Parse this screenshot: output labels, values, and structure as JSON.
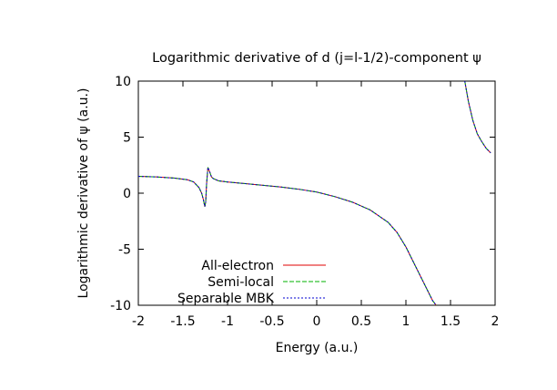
{
  "chart_data": {
    "type": "line",
    "title": "Logarithmic derivative of d (j=l-1/2)-component ψ",
    "xlabel": "Energy (a.u.)",
    "ylabel": "Logarithmic derivative of ψ (a.u.)",
    "xlim": [
      -2,
      2
    ],
    "ylim": [
      -10,
      10
    ],
    "xticks": [
      "-2",
      "-1.5",
      "-1",
      "-0.5",
      "0",
      "0.5",
      "1",
      "1.5",
      "2"
    ],
    "yticks": [
      "10",
      "5",
      "0",
      "-5",
      "-10"
    ],
    "grid": false,
    "legend_position": "bottom-left",
    "series": [
      {
        "name": "All-electron",
        "color": "#e00000",
        "style": "solid",
        "x": [
          -2.0,
          -1.8,
          -1.6,
          -1.45,
          -1.38,
          -1.32,
          -1.29,
          -1.27,
          -1.255,
          -1.245,
          -1.235,
          -1.22,
          -1.2,
          -1.18,
          -1.16,
          -1.13,
          -1.1,
          -1.0,
          -0.8,
          -0.6,
          -0.4,
          -0.2,
          0.0,
          0.2,
          0.4,
          0.6,
          0.8,
          0.9,
          1.0,
          1.1,
          1.2,
          1.25,
          1.3,
          1.34,
          null,
          1.66,
          1.7,
          1.75,
          1.8,
          1.85,
          1.9,
          1.95
        ],
        "y": [
          1.5,
          1.45,
          1.35,
          1.2,
          1.0,
          0.5,
          0.0,
          -0.6,
          -1.2,
          -0.8,
          0.8,
          2.3,
          1.9,
          1.45,
          1.3,
          1.2,
          1.1,
          1.0,
          0.85,
          0.7,
          0.55,
          0.35,
          0.1,
          -0.3,
          -0.8,
          -1.5,
          -2.6,
          -3.5,
          -4.8,
          -6.4,
          -8.0,
          -8.8,
          -9.6,
          -10.0,
          null,
          10.0,
          8.2,
          6.5,
          5.3,
          4.6,
          4.0,
          3.6
        ]
      },
      {
        "name": "Semi-local",
        "color": "#00b000",
        "style": "dashed",
        "x": [
          -2.0,
          -1.8,
          -1.6,
          -1.45,
          -1.38,
          -1.32,
          -1.29,
          -1.27,
          -1.255,
          -1.245,
          -1.235,
          -1.22,
          -1.2,
          -1.18,
          -1.16,
          -1.13,
          -1.1,
          -1.0,
          -0.8,
          -0.6,
          -0.4,
          -0.2,
          0.0,
          0.2,
          0.4,
          0.6,
          0.8,
          0.9,
          1.0,
          1.1,
          1.2,
          1.25,
          1.3,
          1.34,
          null,
          1.66,
          1.7,
          1.75,
          1.8,
          1.85,
          1.9,
          1.95
        ],
        "y": [
          1.5,
          1.45,
          1.35,
          1.2,
          1.0,
          0.5,
          0.0,
          -0.6,
          -1.2,
          -0.8,
          0.8,
          2.3,
          1.9,
          1.45,
          1.3,
          1.2,
          1.1,
          1.0,
          0.85,
          0.7,
          0.55,
          0.35,
          0.1,
          -0.3,
          -0.8,
          -1.5,
          -2.6,
          -3.5,
          -4.8,
          -6.4,
          -8.0,
          -8.8,
          -9.6,
          -10.0,
          null,
          10.0,
          8.2,
          6.5,
          5.3,
          4.6,
          4.0,
          3.6
        ]
      },
      {
        "name": "Separable MBK",
        "color": "#0000d0",
        "style": "dotted",
        "x": [
          -2.0,
          -1.8,
          -1.6,
          -1.45,
          -1.38,
          -1.32,
          -1.29,
          -1.27,
          -1.255,
          -1.245,
          -1.235,
          -1.22,
          -1.2,
          -1.18,
          -1.16,
          -1.13,
          -1.1,
          -1.0,
          -0.8,
          -0.6,
          -0.4,
          -0.2,
          0.0,
          0.2,
          0.4,
          0.6,
          0.8,
          0.9,
          1.0,
          1.1,
          1.2,
          1.25,
          1.3,
          1.34,
          null,
          1.66,
          1.7,
          1.75,
          1.8,
          1.85,
          1.9,
          1.95
        ],
        "y": [
          1.5,
          1.45,
          1.35,
          1.2,
          1.0,
          0.5,
          0.0,
          -0.6,
          -1.2,
          -0.8,
          0.8,
          2.3,
          1.9,
          1.45,
          1.3,
          1.2,
          1.1,
          1.0,
          0.85,
          0.7,
          0.55,
          0.35,
          0.1,
          -0.3,
          -0.8,
          -1.5,
          -2.6,
          -3.5,
          -4.8,
          -6.4,
          -8.0,
          -8.8,
          -9.6,
          -10.0,
          null,
          10.0,
          8.2,
          6.5,
          5.3,
          4.6,
          4.0,
          3.6
        ]
      }
    ]
  }
}
